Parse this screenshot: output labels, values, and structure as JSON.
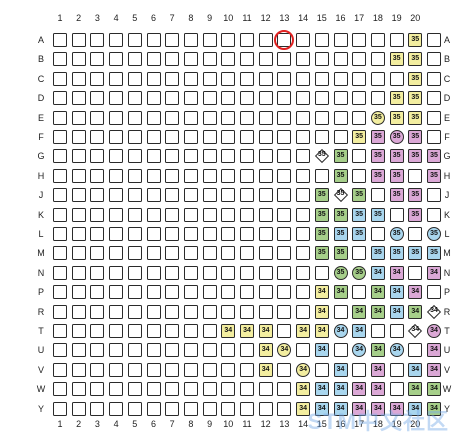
{
  "grid": {
    "column_labels": [
      "1",
      "2",
      "3",
      "4",
      "5",
      "6",
      "7",
      "8",
      "9",
      "10",
      "11",
      "12",
      "13",
      "14",
      "15",
      "16",
      "17",
      "18",
      "19",
      "20"
    ],
    "row_labels": [
      "A",
      "B",
      "C",
      "D",
      "E",
      "F",
      "G",
      "H",
      "J",
      "K",
      "L",
      "M",
      "N",
      "P",
      "R",
      "T",
      "U",
      "V",
      "W",
      "Y"
    ],
    "highlighted_position": "A13",
    "colors": {
      "yellow": "#f3eea0",
      "green": "#a6cf8a",
      "blue": "#a9d6ee",
      "pink": "#dba8d6",
      "white": "#ffffff",
      "marker": "#e02020"
    },
    "cells": [
      {
        "row": "A",
        "col": 20,
        "label": "35",
        "color": "yellow",
        "shape": "square"
      },
      {
        "row": "B",
        "col": 19,
        "label": "35",
        "color": "yellow",
        "shape": "square"
      },
      {
        "row": "B",
        "col": 20,
        "label": "35",
        "color": "yellow",
        "shape": "square"
      },
      {
        "row": "C",
        "col": 20,
        "label": "35",
        "color": "yellow",
        "shape": "square"
      },
      {
        "row": "D",
        "col": 19,
        "label": "35",
        "color": "yellow",
        "shape": "square"
      },
      {
        "row": "D",
        "col": 20,
        "label": "35",
        "color": "yellow",
        "shape": "square"
      },
      {
        "row": "E",
        "col": 18,
        "label": "35",
        "color": "yellow",
        "shape": "circle"
      },
      {
        "row": "E",
        "col": 19,
        "label": "35",
        "color": "yellow",
        "shape": "square"
      },
      {
        "row": "E",
        "col": 20,
        "label": "35",
        "color": "yellow",
        "shape": "square"
      },
      {
        "row": "F",
        "col": 17,
        "label": "35",
        "color": "yellow",
        "shape": "square"
      },
      {
        "row": "F",
        "col": 18,
        "label": "35",
        "color": "pink",
        "shape": "square"
      },
      {
        "row": "F",
        "col": 19,
        "label": "35",
        "color": "pink",
        "shape": "circle"
      },
      {
        "row": "F",
        "col": 20,
        "label": "35",
        "color": "pink",
        "shape": "square"
      },
      {
        "row": "G",
        "col": 15,
        "label": "35",
        "color": "white",
        "shape": "diamond"
      },
      {
        "row": "G",
        "col": 16,
        "label": "35",
        "color": "green",
        "shape": "square"
      },
      {
        "row": "G",
        "col": 18,
        "label": "35",
        "color": "pink",
        "shape": "square"
      },
      {
        "row": "G",
        "col": 19,
        "label": "35",
        "color": "pink",
        "shape": "square"
      },
      {
        "row": "G",
        "col": 20,
        "label": "35",
        "color": "pink",
        "shape": "square"
      },
      {
        "row": "G",
        "col": 21,
        "label": "35",
        "color": "pink",
        "shape": "square"
      },
      {
        "row": "H",
        "col": 16,
        "label": "35",
        "color": "green",
        "shape": "square"
      },
      {
        "row": "H",
        "col": 18,
        "label": "35",
        "color": "pink",
        "shape": "square"
      },
      {
        "row": "H",
        "col": 19,
        "label": "35",
        "color": "pink",
        "shape": "square"
      },
      {
        "row": "H",
        "col": 21,
        "label": "35",
        "color": "pink",
        "shape": "square"
      },
      {
        "row": "J",
        "col": 15,
        "label": "35",
        "color": "green",
        "shape": "square"
      },
      {
        "row": "J",
        "col": 16,
        "label": "35",
        "color": "white",
        "shape": "diamond"
      },
      {
        "row": "J",
        "col": 17,
        "label": "35",
        "color": "green",
        "shape": "square"
      },
      {
        "row": "J",
        "col": 19,
        "label": "35",
        "color": "pink",
        "shape": "square"
      },
      {
        "row": "J",
        "col": 20,
        "label": "35",
        "color": "pink",
        "shape": "square"
      },
      {
        "row": "K",
        "col": 15,
        "label": "35",
        "color": "green",
        "shape": "square"
      },
      {
        "row": "K",
        "col": 16,
        "label": "35",
        "color": "green",
        "shape": "square"
      },
      {
        "row": "K",
        "col": 17,
        "label": "35",
        "color": "blue",
        "shape": "square"
      },
      {
        "row": "K",
        "col": 18,
        "label": "35",
        "color": "blue",
        "shape": "square"
      },
      {
        "row": "K",
        "col": 20,
        "label": "35",
        "color": "pink",
        "shape": "square"
      },
      {
        "row": "L",
        "col": 15,
        "label": "35",
        "color": "green",
        "shape": "square"
      },
      {
        "row": "L",
        "col": 16,
        "label": "35",
        "color": "blue",
        "shape": "square"
      },
      {
        "row": "L",
        "col": 17,
        "label": "35",
        "color": "blue",
        "shape": "square"
      },
      {
        "row": "L",
        "col": 19,
        "label": "35",
        "color": "blue",
        "shape": "circle"
      },
      {
        "row": "L",
        "col": 21,
        "label": "35",
        "color": "blue",
        "shape": "circle"
      },
      {
        "row": "M",
        "col": 15,
        "label": "35",
        "color": "green",
        "shape": "square"
      },
      {
        "row": "M",
        "col": 16,
        "label": "35",
        "color": "green",
        "shape": "square"
      },
      {
        "row": "M",
        "col": 18,
        "label": "35",
        "color": "blue",
        "shape": "square"
      },
      {
        "row": "M",
        "col": 19,
        "label": "35",
        "color": "blue",
        "shape": "square"
      },
      {
        "row": "M",
        "col": 20,
        "label": "35",
        "color": "blue",
        "shape": "square"
      },
      {
        "row": "M",
        "col": 21,
        "label": "35",
        "color": "blue",
        "shape": "square"
      },
      {
        "row": "N",
        "col": 16,
        "label": "35",
        "color": "green",
        "shape": "circle"
      },
      {
        "row": "N",
        "col": 17,
        "label": "35",
        "color": "green",
        "shape": "circle"
      },
      {
        "row": "N",
        "col": 18,
        "label": "34",
        "color": "blue",
        "shape": "square"
      },
      {
        "row": "N",
        "col": 19,
        "label": "34",
        "color": "pink",
        "shape": "square"
      },
      {
        "row": "N",
        "col": 21,
        "label": "34",
        "color": "pink",
        "shape": "square"
      },
      {
        "row": "P",
        "col": 15,
        "label": "34",
        "color": "yellow",
        "shape": "square"
      },
      {
        "row": "P",
        "col": 16,
        "label": "34",
        "color": "green",
        "shape": "square"
      },
      {
        "row": "P",
        "col": 18,
        "label": "34",
        "color": "green",
        "shape": "square"
      },
      {
        "row": "P",
        "col": 19,
        "label": "34",
        "color": "blue",
        "shape": "square"
      },
      {
        "row": "P",
        "col": 20,
        "label": "34",
        "color": "pink",
        "shape": "square"
      },
      {
        "row": "R",
        "col": 15,
        "label": "34",
        "color": "yellow",
        "shape": "square"
      },
      {
        "row": "R",
        "col": 17,
        "label": "34",
        "color": "green",
        "shape": "square"
      },
      {
        "row": "R",
        "col": 18,
        "label": "34",
        "color": "green",
        "shape": "square"
      },
      {
        "row": "R",
        "col": 19,
        "label": "34",
        "color": "blue",
        "shape": "square"
      },
      {
        "row": "R",
        "col": 20,
        "label": "34",
        "color": "green",
        "shape": "square"
      },
      {
        "row": "R",
        "col": 21,
        "label": "34",
        "color": "white",
        "shape": "diamond"
      },
      {
        "row": "T",
        "col": 10,
        "label": "34",
        "color": "yellow",
        "shape": "square"
      },
      {
        "row": "T",
        "col": 11,
        "label": "34",
        "color": "yellow",
        "shape": "square"
      },
      {
        "row": "T",
        "col": 12,
        "label": "34",
        "color": "yellow",
        "shape": "square"
      },
      {
        "row": "T",
        "col": 14,
        "label": "34",
        "color": "yellow",
        "shape": "square"
      },
      {
        "row": "T",
        "col": 15,
        "label": "34",
        "color": "yellow",
        "shape": "square"
      },
      {
        "row": "T",
        "col": 16,
        "label": "34",
        "color": "blue",
        "shape": "circle"
      },
      {
        "row": "T",
        "col": 17,
        "label": "34",
        "color": "blue",
        "shape": "square"
      },
      {
        "row": "T",
        "col": 20,
        "label": "34",
        "color": "white",
        "shape": "diamond"
      },
      {
        "row": "T",
        "col": 21,
        "label": "34",
        "color": "pink",
        "shape": "circle"
      },
      {
        "row": "U",
        "col": 12,
        "label": "34",
        "color": "yellow",
        "shape": "square"
      },
      {
        "row": "U",
        "col": 13,
        "label": "34",
        "color": "yellow",
        "shape": "circle"
      },
      {
        "row": "U",
        "col": 15,
        "label": "34",
        "color": "blue",
        "shape": "square"
      },
      {
        "row": "U",
        "col": 17,
        "label": "34",
        "color": "blue",
        "shape": "circle"
      },
      {
        "row": "U",
        "col": 18,
        "label": "34",
        "color": "green",
        "shape": "square"
      },
      {
        "row": "U",
        "col": 19,
        "label": "34",
        "color": "blue",
        "shape": "circle"
      },
      {
        "row": "U",
        "col": 21,
        "label": "34",
        "color": "pink",
        "shape": "square"
      },
      {
        "row": "V",
        "col": 12,
        "label": "34",
        "color": "yellow",
        "shape": "square"
      },
      {
        "row": "V",
        "col": 14,
        "label": "34",
        "color": "yellow",
        "shape": "circle"
      },
      {
        "row": "V",
        "col": 16,
        "label": "34",
        "color": "blue",
        "shape": "square"
      },
      {
        "row": "V",
        "col": 18,
        "label": "34",
        "color": "pink",
        "shape": "square"
      },
      {
        "row": "V",
        "col": 20,
        "label": "34",
        "color": "blue",
        "shape": "square"
      },
      {
        "row": "V",
        "col": 21,
        "label": "34",
        "color": "pink",
        "shape": "square"
      },
      {
        "row": "W",
        "col": 14,
        "label": "34",
        "color": "yellow",
        "shape": "square"
      },
      {
        "row": "W",
        "col": 15,
        "label": "34",
        "color": "blue",
        "shape": "square"
      },
      {
        "row": "W",
        "col": 16,
        "label": "34",
        "color": "blue",
        "shape": "square"
      },
      {
        "row": "W",
        "col": 17,
        "label": "34",
        "color": "pink",
        "shape": "square"
      },
      {
        "row": "W",
        "col": 18,
        "label": "34",
        "color": "pink",
        "shape": "square"
      },
      {
        "row": "W",
        "col": 20,
        "label": "34",
        "color": "green",
        "shape": "square"
      },
      {
        "row": "W",
        "col": 21,
        "label": "34",
        "color": "green",
        "shape": "square"
      },
      {
        "row": "Y",
        "col": 14,
        "label": "34",
        "color": "yellow",
        "shape": "square"
      },
      {
        "row": "Y",
        "col": 15,
        "label": "34",
        "color": "blue",
        "shape": "square"
      },
      {
        "row": "Y",
        "col": 16,
        "label": "34",
        "color": "blue",
        "shape": "square"
      },
      {
        "row": "Y",
        "col": 17,
        "label": "34",
        "color": "pink",
        "shape": "square"
      },
      {
        "row": "Y",
        "col": 18,
        "label": "34",
        "color": "pink",
        "shape": "square"
      },
      {
        "row": "Y",
        "col": 19,
        "label": "34",
        "color": "pink",
        "shape": "square"
      },
      {
        "row": "Y",
        "col": 20,
        "label": "34",
        "color": "blue",
        "shape": "square"
      },
      {
        "row": "Y",
        "col": 21,
        "label": "34",
        "color": "green",
        "shape": "square"
      }
    ]
  },
  "watermark": "STM中文社区"
}
